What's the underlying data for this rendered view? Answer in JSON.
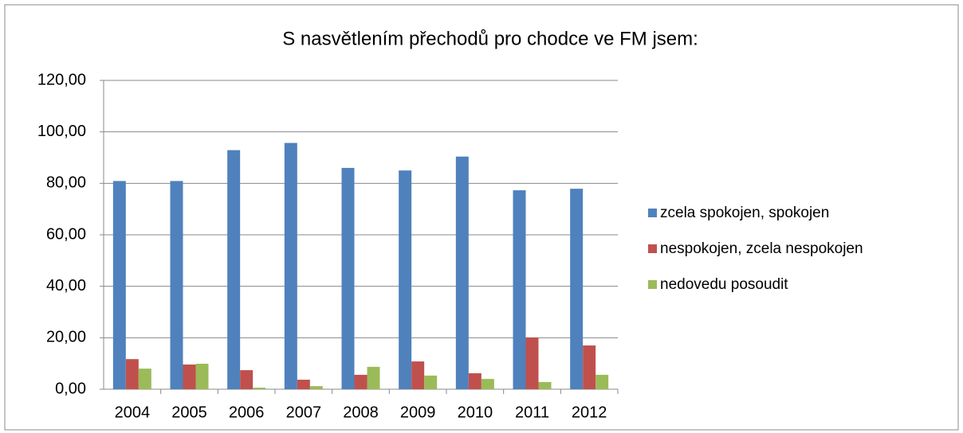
{
  "chart_data": {
    "type": "bar",
    "title": "S nasvětlením přechodů pro chodce ve FM jsem:",
    "categories": [
      "2004",
      "2005",
      "2006",
      "2007",
      "2008",
      "2009",
      "2010",
      "2011",
      "2012"
    ],
    "series": [
      {
        "name": "zcela spokojen, spokojen",
        "color": "#4f81bd",
        "values": [
          80.9,
          80.9,
          92.9,
          95.7,
          86.0,
          85.0,
          90.4,
          77.3,
          77.9
        ]
      },
      {
        "name": "nespokojen, zcela nespokojen",
        "color": "#c0504d",
        "values": [
          11.7,
          9.6,
          7.4,
          3.7,
          5.6,
          10.8,
          6.2,
          20.1,
          17.0
        ]
      },
      {
        "name": "nedovedu posoudit",
        "color": "#9bbb59",
        "values": [
          8.0,
          9.9,
          0.6,
          1.2,
          8.7,
          5.3,
          4.0,
          2.8,
          5.6
        ]
      }
    ],
    "ylim": [
      0,
      120
    ],
    "yticks": [
      {
        "value": 0,
        "label": "0,00"
      },
      {
        "value": 20,
        "label": "20,00"
      },
      {
        "value": 40,
        "label": "40,00"
      },
      {
        "value": 60,
        "label": "60,00"
      },
      {
        "value": 80,
        "label": "80,00"
      },
      {
        "value": 100,
        "label": "100,00"
      },
      {
        "value": 120,
        "label": "120,00"
      }
    ],
    "grid": true,
    "legend": "right"
  }
}
